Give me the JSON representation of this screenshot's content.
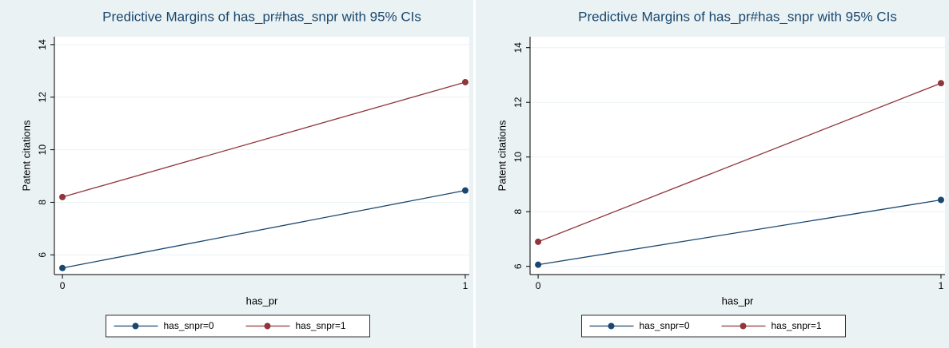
{
  "chart_data": [
    {
      "type": "line",
      "title": "Predictive Margins of has_pr#has_snpr with 95% CIs",
      "x_label": "has_pr",
      "y_label": "Patent citations",
      "x": [
        0,
        1
      ],
      "xlim": [
        -0.02,
        1.01
      ],
      "xticks": [
        0,
        1
      ],
      "ylim": [
        5.25,
        14.3
      ],
      "yticks": [
        6,
        8,
        10,
        12,
        14
      ],
      "grid": true,
      "legend": "bottom",
      "series": [
        {
          "name": "has_snpr=0",
          "color": "#1a476f",
          "values": [
            5.5,
            8.45
          ]
        },
        {
          "name": "has_snpr=1",
          "color": "#90353b",
          "values": [
            8.2,
            12.57
          ]
        }
      ]
    },
    {
      "type": "line",
      "title": "Predictive Margins of has_pr#has_snpr with 95% CIs",
      "x_label": "has_pr",
      "y_label": "Patent citations",
      "x": [
        0,
        1
      ],
      "xlim": [
        -0.02,
        1.01
      ],
      "xticks": [
        0,
        1
      ],
      "ylim": [
        5.7,
        14.4
      ],
      "yticks": [
        6,
        8,
        10,
        12,
        14
      ],
      "grid": true,
      "legend": "bottom",
      "series": [
        {
          "name": "has_snpr=0",
          "color": "#1a476f",
          "values": [
            6.06,
            8.43
          ]
        },
        {
          "name": "has_snpr=1",
          "color": "#90353b",
          "values": [
            6.9,
            12.7
          ]
        }
      ]
    }
  ]
}
